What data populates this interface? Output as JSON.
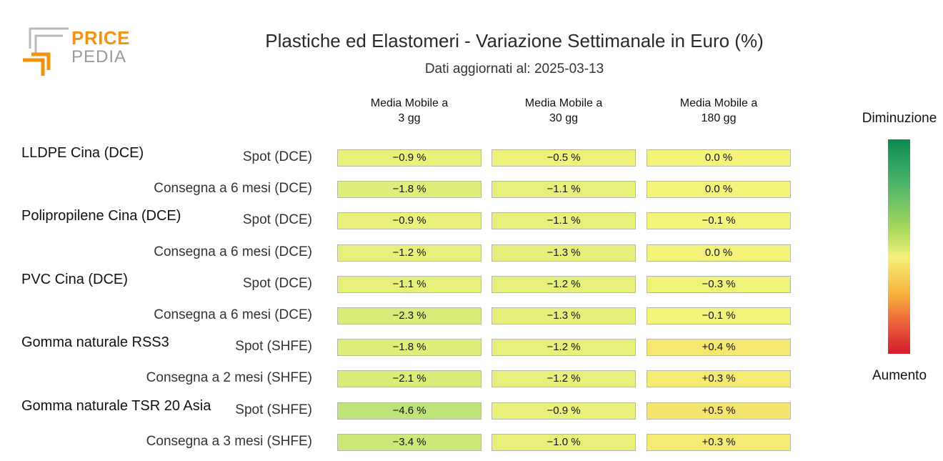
{
  "logo": {
    "word1": "PRICE",
    "word2": "PEDIA"
  },
  "chart_data": {
    "type": "table",
    "title": "Plastiche ed Elastomeri - Variazione Settimanale in Euro (%)",
    "subtitle": "Dati aggiornati al: 2025-03-13",
    "columns": [
      {
        "line1": "Media Mobile a",
        "line2": "3 gg"
      },
      {
        "line1": "Media Mobile a",
        "line2": "30 gg"
      },
      {
        "line1": "Media Mobile a",
        "line2": "180 gg"
      }
    ],
    "unit": "%",
    "groups": [
      {
        "name": "LLDPE Cina (DCE)",
        "rows": [
          {
            "label": "Spot (DCE)",
            "values": [
              -0.9,
              -0.5,
              0.0
            ]
          },
          {
            "label": "Consegna a 6 mesi (DCE)",
            "values": [
              -1.8,
              -1.1,
              0.0
            ]
          }
        ]
      },
      {
        "name": "Polipropilene Cina (DCE)",
        "rows": [
          {
            "label": "Spot (DCE)",
            "values": [
              -0.9,
              -1.1,
              -0.1
            ]
          },
          {
            "label": "Consegna a 6 mesi (DCE)",
            "values": [
              -1.2,
              -1.3,
              0.0
            ]
          }
        ]
      },
      {
        "name": "PVC Cina (DCE)",
        "rows": [
          {
            "label": "Spot (DCE)",
            "values": [
              -1.1,
              -1.2,
              -0.3
            ]
          },
          {
            "label": "Consegna a 6 mesi (DCE)",
            "values": [
              -2.3,
              -1.3,
              -0.1
            ]
          }
        ]
      },
      {
        "name": "Gomma naturale RSS3",
        "rows": [
          {
            "label": "Spot (SHFE)",
            "values": [
              -1.8,
              -1.2,
              0.4
            ]
          },
          {
            "label": "Consegna a 2 mesi (SHFE)",
            "values": [
              -2.1,
              -1.2,
              0.3
            ]
          }
        ]
      },
      {
        "name": "Gomma naturale TSR 20 Asia",
        "rows": [
          {
            "label": "Spot (SHFE)",
            "values": [
              -4.6,
              -0.9,
              0.5
            ]
          },
          {
            "label": "Consegna a 3 mesi (SHFE)",
            "values": [
              -3.4,
              -1.0,
              0.3
            ]
          }
        ]
      }
    ],
    "legend": {
      "top_label": "Diminuzione",
      "bottom_label": "Aumento"
    }
  }
}
